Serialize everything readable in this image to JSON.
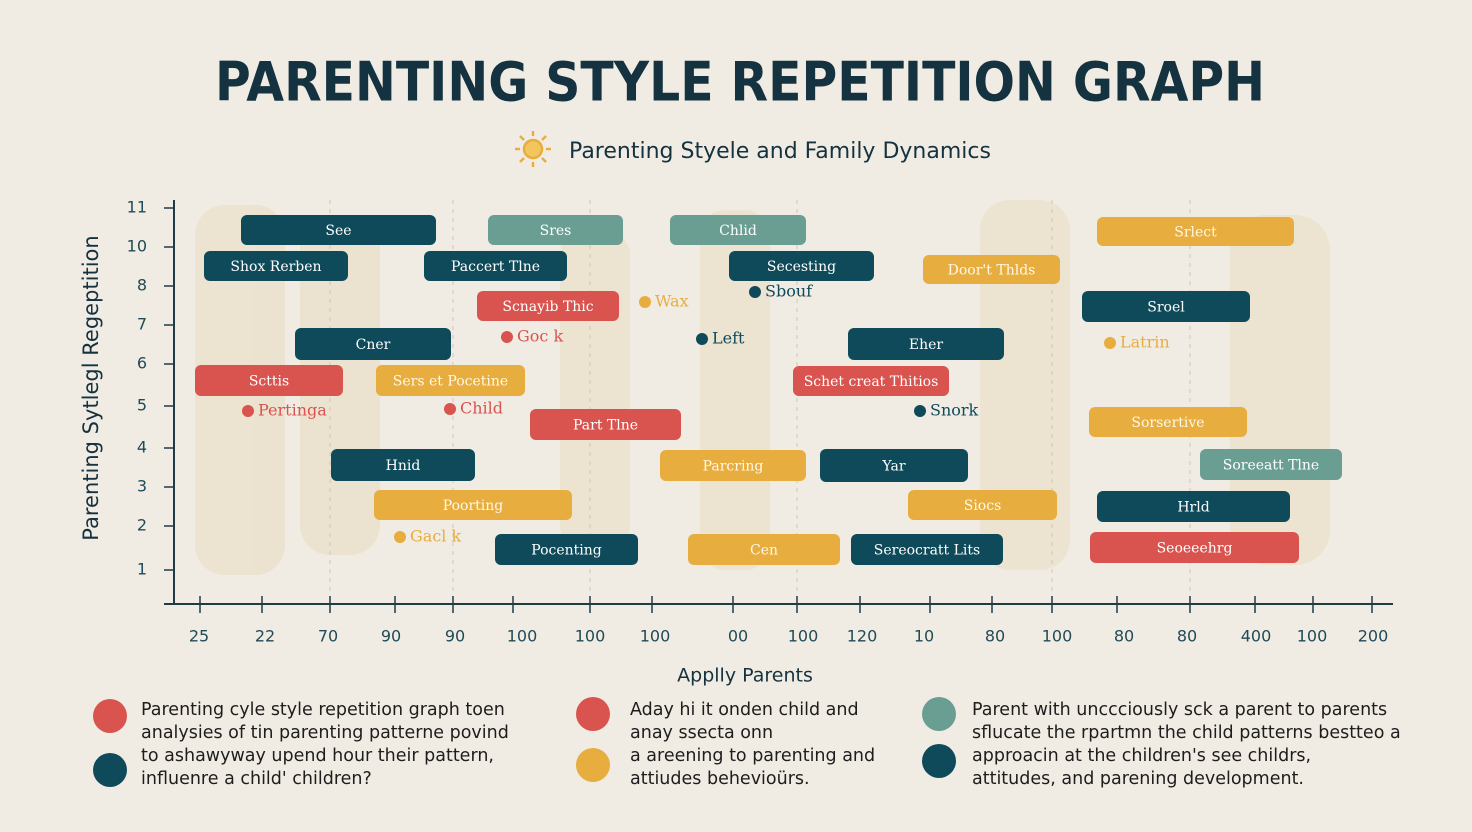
{
  "title": "PARENTING STYLE REPETITION GRAPH",
  "subtitle": "Parenting Styele and Family Dynamics",
  "y_axis_label": "Parenting Sytlegl Regeptition",
  "x_axis_label": "Applly Parents",
  "y_tick_labels": [
    "11",
    "10",
    "8",
    "7",
    "6",
    "5",
    "4",
    "3",
    "2",
    "1"
  ],
  "x_tick_labels": [
    "25",
    "22",
    "70",
    "90",
    "90",
    "100",
    "100",
    "100",
    "00",
    "100",
    "120",
    "10",
    "80",
    "100",
    "80",
    "80",
    "400",
    "100",
    "200"
  ],
  "bars": [
    {
      "label": "See"
    },
    {
      "label": "Sres"
    },
    {
      "label": "Chlid"
    },
    {
      "label": "Srlect"
    },
    {
      "label": "Shox Rerben"
    },
    {
      "label": "Paccert Tlne"
    },
    {
      "label": "Secesting"
    },
    {
      "label": "Door't Thlds"
    },
    {
      "label": "Scnayib Thic"
    },
    {
      "label": "Sroel"
    },
    {
      "label": "Cner"
    },
    {
      "label": "Eher"
    },
    {
      "label": "Scttis"
    },
    {
      "label": "Sers et Pocetine"
    },
    {
      "label": "Schet creat Thitios"
    },
    {
      "label": "Part Tlne"
    },
    {
      "label": "Sorsertive"
    },
    {
      "label": "Hnid"
    },
    {
      "label": "Parcring"
    },
    {
      "label": "Yar"
    },
    {
      "label": "Soreeatt Tlne"
    },
    {
      "label": "Poorting"
    },
    {
      "label": "Siocs"
    },
    {
      "label": "Hrld"
    },
    {
      "label": "Pocenting"
    },
    {
      "label": "Cen"
    },
    {
      "label": "Sereocratt Lits"
    },
    {
      "label": "Seoeeehrg"
    }
  ],
  "annotations": [
    "Wax",
    "Sbouf",
    "Goc k",
    "Left",
    "Latrin",
    "Pertinga",
    "Child",
    "Snork",
    "Gacl k"
  ],
  "legend": [
    {
      "lines": [
        "Parenting cyle style repetition graph toen",
        "analysies of tin parenting patterne povind",
        "to ashawyway upend hour their pattern,",
        "influenre a child' children?"
      ]
    },
    {
      "lines": [
        "Aday hi it onden child and",
        "anay ssecta onn",
        "a areening to parenting and",
        "attiudes behevioürs."
      ]
    },
    {
      "lines": [
        "Parent with unccciously sck a parent to parents",
        "sflucate the rpartmn the child patterns bestteo a",
        "approacin at the children's see childrs,",
        "attitudes, and parening development."
      ]
    }
  ]
}
